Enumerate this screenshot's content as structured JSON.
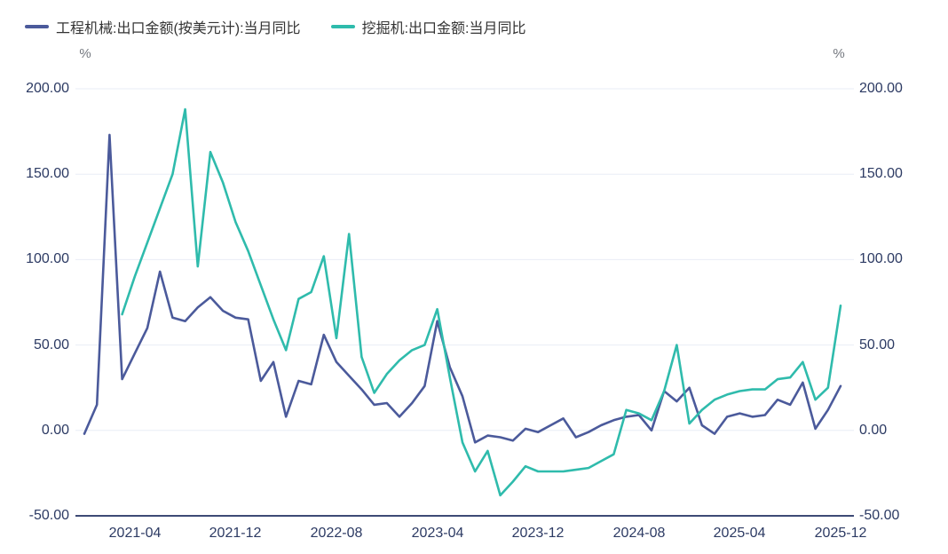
{
  "chart_data": {
    "type": "line",
    "title": "",
    "y_unit_left": "%",
    "y_unit_right": "%",
    "ylim": [
      -50,
      200
    ],
    "grid": true,
    "legend_position": "top-left",
    "y_ticks": [
      "200.00",
      "150.00",
      "100.00",
      "50.00",
      "0.00",
      "-50.00"
    ],
    "y_tick_values": [
      200,
      150,
      100,
      50,
      0,
      -50
    ],
    "x_categories": [
      "2020-12",
      "2021-01",
      "2021-02",
      "2021-03",
      "2021-04",
      "2021-05",
      "2021-06",
      "2021-07",
      "2021-08",
      "2021-09",
      "2021-10",
      "2021-11",
      "2021-12",
      "2022-01",
      "2022-02",
      "2022-03",
      "2022-04",
      "2022-05",
      "2022-06",
      "2022-07",
      "2022-08",
      "2022-09",
      "2022-10",
      "2022-11",
      "2022-12",
      "2023-01",
      "2023-02",
      "2023-03",
      "2023-04",
      "2023-05",
      "2023-06",
      "2023-07",
      "2023-08",
      "2023-09",
      "2023-10",
      "2023-11",
      "2023-12",
      "2024-01",
      "2024-02",
      "2024-03",
      "2024-04",
      "2024-05",
      "2024-06",
      "2024-07",
      "2024-08",
      "2024-09",
      "2024-10",
      "2024-11",
      "2024-12",
      "2025-01",
      "2025-02",
      "2025-03",
      "2025-04",
      "2025-05",
      "2025-06",
      "2025-07",
      "2025-08",
      "2025-09",
      "2025-10",
      "2025-11",
      "2025-12"
    ],
    "x_tick_indices": [
      4,
      12,
      20,
      28,
      36,
      44,
      52,
      60
    ],
    "x_tick_labels": [
      "2021-04",
      "2021-12",
      "2022-08",
      "2023-04",
      "2023-12",
      "2024-08",
      "2025-04",
      "2025-12"
    ],
    "series": [
      {
        "name": "工程机械:出口金额(按美元计):当月同比",
        "color": "#4b5a9b",
        "values": [
          -2,
          15,
          173,
          30,
          45,
          60,
          93,
          66,
          64,
          72,
          78,
          70,
          66,
          65,
          29,
          40,
          8,
          29,
          27,
          56,
          40,
          32,
          24,
          15,
          16,
          8,
          16,
          26,
          64,
          37,
          20,
          -7,
          -3,
          -4,
          -6,
          1,
          -1,
          3,
          7,
          -4,
          -1,
          3,
          6,
          8,
          9,
          0,
          23,
          17,
          25,
          3,
          -2,
          8,
          10,
          8,
          9,
          18,
          15,
          28,
          1,
          12,
          26
        ]
      },
      {
        "name": "挖掘机:出口金额:当月同比",
        "color": "#2fbbac",
        "values": [
          null,
          null,
          null,
          68,
          90,
          110,
          130,
          150,
          188,
          96,
          163,
          145,
          122,
          105,
          85,
          65,
          47,
          77,
          81,
          102,
          54,
          115,
          43,
          22,
          33,
          41,
          47,
          50,
          71,
          31,
          -7,
          -24,
          -12,
          -38,
          -30,
          -21,
          -24,
          -24,
          -24,
          -23,
          -22,
          -18,
          -14,
          12,
          10,
          6,
          23,
          50,
          4,
          12,
          18,
          21,
          23,
          24,
          24,
          30,
          31,
          40,
          18,
          25,
          73
        ]
      }
    ],
    "colors": {
      "grid_line": "#e9edf6",
      "axis_line": "#3d4a75",
      "tick_label": "#2c3a63",
      "unit_label": "#74787f",
      "legend_text": "#333333",
      "background": "#ffffff"
    }
  }
}
